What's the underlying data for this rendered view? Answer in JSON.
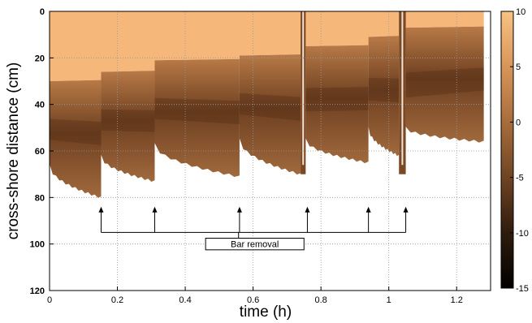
{
  "chart_data": {
    "type": "heatmap",
    "xlabel": "time (h)",
    "ylabel": "cross-shore distance (cm)",
    "xlim": [
      0,
      1.3
    ],
    "ylim": [
      0,
      120
    ],
    "y_inverted": true,
    "xticks": [
      0,
      0.2,
      0.4,
      0.6,
      0.8,
      1,
      1.2
    ],
    "xtick_labels": [
      "0",
      "0.2",
      "0.4",
      "0.6",
      "0.8",
      "1",
      "1.2"
    ],
    "yticks": [
      0,
      20,
      40,
      60,
      80,
      100,
      120
    ],
    "ytick_labels": [
      "0",
      "20",
      "40",
      "60",
      "80",
      "100",
      "120"
    ],
    "grid": true,
    "colorbar": {
      "range": [
        -15,
        10
      ],
      "ticks": [
        10,
        5,
        0,
        -5,
        -10,
        -15
      ],
      "tick_labels": [
        "10",
        "5",
        "0",
        "-5",
        "-10",
        "-15"
      ],
      "color_low": "#000000",
      "color_mid": "#7a4a24",
      "color_high": "#f9c382"
    },
    "segments": [
      {
        "t0": 0.0,
        "t1": 0.152,
        "slope_start": 30,
        "edge_start": 66,
        "edge_end": 80
      },
      {
        "t0": 0.152,
        "t1": 0.31,
        "slope_start": 26,
        "edge_start": 62,
        "edge_end": 73
      },
      {
        "t0": 0.31,
        "t1": 0.56,
        "slope_start": 21,
        "edge_start": 57,
        "edge_end": 71
      },
      {
        "t0": 0.56,
        "t1": 0.74,
        "slope_start": 19,
        "edge_start": 55,
        "edge_end": 70
      },
      {
        "t0": 0.755,
        "t1": 0.94,
        "slope_start": 15,
        "edge_start": 55,
        "edge_end": 65
      },
      {
        "t0": 0.94,
        "t1": 1.03,
        "slope_start": 11,
        "edge_start": 50,
        "edge_end": 62
      },
      {
        "t0": 1.05,
        "t1": 1.28,
        "slope_start": 7,
        "edge_start": 50,
        "edge_end": 56
      }
    ],
    "gaps": [
      {
        "t0": 0.74,
        "t1": 0.755
      },
      {
        "t0": 1.03,
        "t1": 1.05
      }
    ],
    "annotation": {
      "text": "Bar removal",
      "arrow_times": [
        0.152,
        0.31,
        0.56,
        0.76,
        0.94,
        1.05
      ],
      "arrow_tip": 84,
      "bracket_y": 95,
      "box_top": 97.5,
      "box_bottom": 102.5,
      "box_x0": 0.46,
      "box_x1": 0.75
    }
  }
}
